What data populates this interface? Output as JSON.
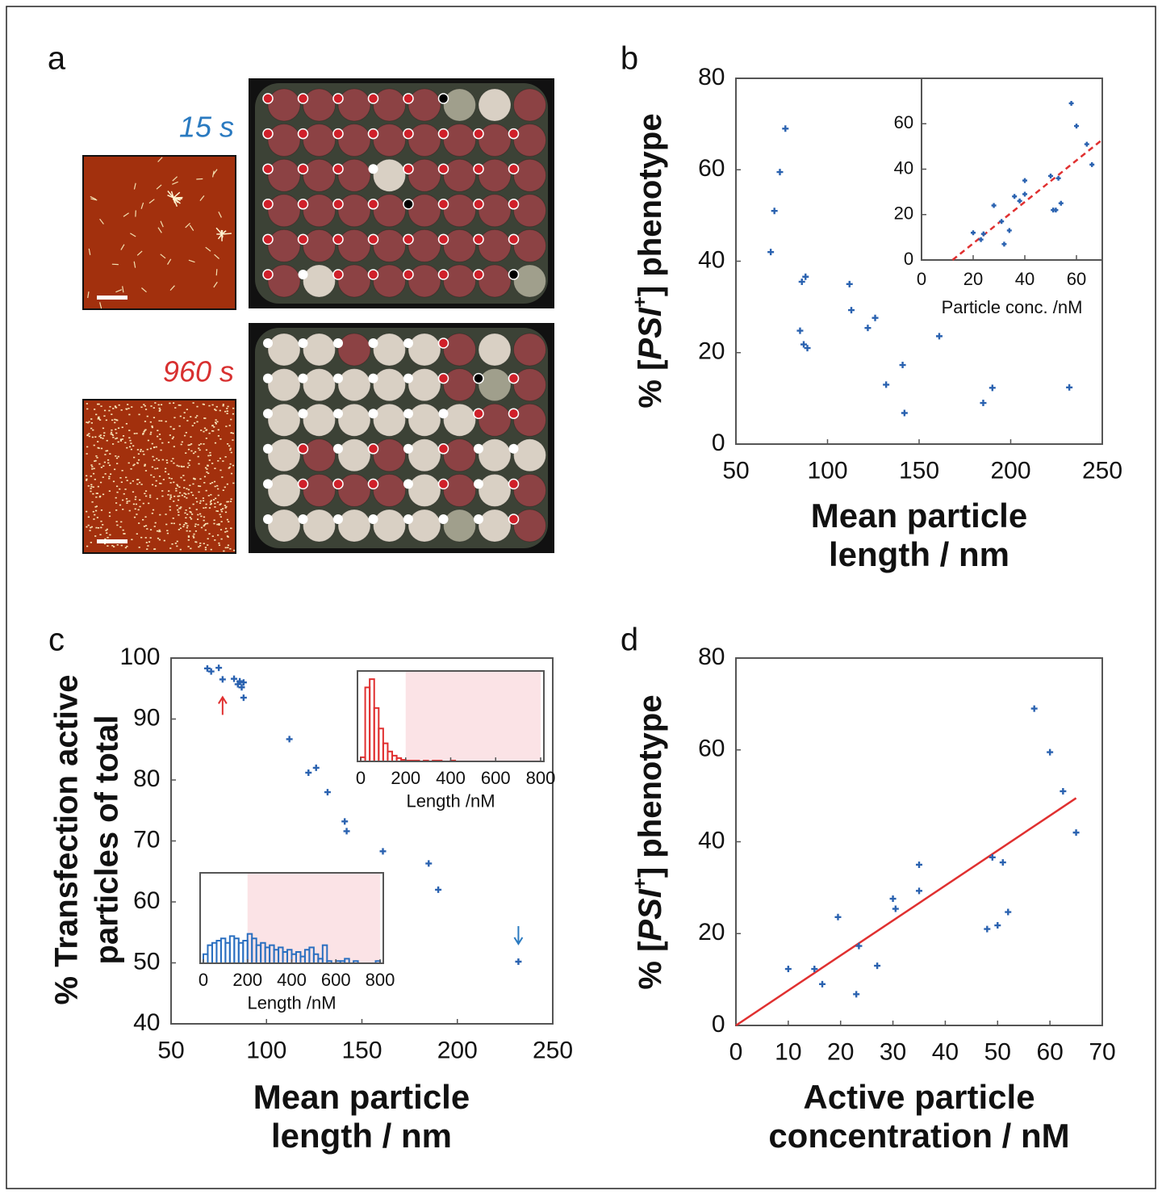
{
  "panel_a": {
    "label": "a",
    "images": [
      {
        "time": "15 s"
      },
      {
        "time": "960 s"
      }
    ]
  },
  "chart_data": [
    {
      "panel": "b",
      "type": "scatter",
      "color": "#2a62b0",
      "x": [
        69,
        71,
        74,
        77,
        85,
        86,
        88,
        87,
        89,
        112,
        113,
        122,
        126,
        132,
        141,
        142,
        161,
        185,
        190,
        232
      ],
      "values": [
        42,
        51,
        59.5,
        69,
        24.8,
        35.5,
        36.6,
        21.8,
        21,
        35,
        29.3,
        25.4,
        27.6,
        13,
        17.3,
        6.8,
        23.6,
        9,
        12.3,
        12.4
      ],
      "xlim": [
        50,
        250
      ],
      "xticks": [
        50,
        100,
        150,
        200,
        250
      ],
      "ylim": [
        0,
        80
      ],
      "yticks": [
        0,
        20,
        40,
        60,
        80
      ],
      "xlabel": [
        "Mean particle",
        "length / nm"
      ],
      "ylabel": {
        "prefix": "% [",
        "italic": "PSI",
        "sup": "+",
        "suffix": "] phenotype"
      },
      "inset": {
        "type": "scatter",
        "color": "#2a62b0",
        "x": [
          20,
          23,
          24,
          28,
          31,
          32,
          34,
          36,
          38,
          40,
          40,
          50,
          51,
          52,
          53,
          54,
          58,
          60,
          64,
          66
        ],
        "values": [
          12,
          9,
          11.5,
          24,
          17,
          7,
          13,
          28,
          26,
          35,
          29,
          37,
          22,
          22,
          36,
          25,
          69,
          59,
          51,
          42
        ],
        "fit": {
          "type": "line",
          "style": "dashed",
          "color": "#e03030",
          "x": [
            12,
            70
          ],
          "values": [
            0,
            53
          ]
        },
        "xlim": [
          0,
          70
        ],
        "xticks": [
          0,
          20,
          40,
          60
        ],
        "ylim": [
          0,
          80
        ],
        "yticks": [
          0,
          20,
          40,
          60
        ],
        "xlabel": "Particle conc. /nM"
      }
    },
    {
      "panel": "c",
      "type": "scatter",
      "color": "#2a62b0",
      "x": [
        69,
        71,
        75,
        77,
        83,
        85,
        86,
        87,
        88,
        88,
        112,
        122,
        126,
        132,
        141,
        142,
        161,
        185,
        190,
        232
      ],
      "values": [
        98.3,
        97.8,
        98.4,
        96.5,
        96.6,
        95.7,
        96.2,
        95.2,
        96,
        93.5,
        86.7,
        81.2,
        82,
        78,
        73.2,
        71.6,
        68.3,
        66.3,
        62,
        50.2
      ],
      "xlim": [
        50,
        250
      ],
      "xticks": [
        50,
        100,
        150,
        200,
        250
      ],
      "ylim": [
        40,
        100
      ],
      "yticks": [
        40,
        50,
        60,
        70,
        80,
        90,
        100
      ],
      "xlabel": [
        "Mean particle",
        "length / nm"
      ],
      "ylabel": [
        "% Transfection active",
        "particles of total"
      ],
      "insets": [
        {
          "type": "histogram",
          "color": "#e03030",
          "highlight": [
            200,
            800
          ],
          "bins": [
            0,
            20,
            40,
            60,
            80,
            100,
            120,
            140,
            160,
            180,
            200,
            220,
            240,
            260,
            280,
            300,
            320,
            340,
            360,
            380,
            400,
            420,
            440,
            460,
            480,
            500,
            520,
            540,
            560,
            580,
            600,
            620,
            640,
            660,
            680,
            700,
            720,
            740,
            760,
            780,
            800
          ],
          "counts": [
            5,
            90,
            100,
            65,
            40,
            22,
            12,
            7,
            4,
            2,
            1,
            1,
            1,
            0,
            1,
            0,
            1,
            1,
            0,
            0,
            1,
            0,
            0,
            0,
            0,
            0,
            0,
            0,
            0,
            0,
            0,
            0,
            0,
            0,
            0,
            0,
            0,
            0,
            0,
            0
          ],
          "xlim": [
            0,
            800
          ],
          "xticks": [
            0,
            200,
            400,
            600,
            800
          ],
          "ylim": [
            0,
            110
          ],
          "xlabel": "Length /nM"
        },
        {
          "type": "histogram",
          "color": "#2a6fc0",
          "highlight": [
            200,
            800
          ],
          "bins": [
            0,
            20,
            40,
            60,
            80,
            100,
            120,
            140,
            160,
            180,
            200,
            220,
            240,
            260,
            280,
            300,
            320,
            340,
            360,
            380,
            400,
            420,
            440,
            460,
            480,
            500,
            520,
            540,
            560,
            580,
            600,
            620,
            640,
            660,
            680,
            700,
            720,
            740,
            760,
            780,
            800
          ],
          "counts": [
            4,
            8,
            9,
            10,
            11,
            9,
            12,
            11,
            9,
            10,
            13,
            11,
            8,
            9,
            7,
            8,
            6,
            7,
            5,
            6,
            4,
            5,
            3,
            6,
            7,
            4,
            2,
            8,
            1,
            0,
            1,
            1,
            2,
            0,
            1,
            0,
            0,
            0,
            0,
            1
          ],
          "xlim": [
            0,
            800
          ],
          "xticks": [
            0,
            200,
            400,
            600,
            800
          ],
          "ylim": [
            0,
            40
          ],
          "xlabel": "Length /nM"
        }
      ]
    },
    {
      "panel": "d",
      "type": "scatter",
      "color": "#2a62b0",
      "x": [
        10,
        15,
        16.5,
        19.5,
        23,
        23.5,
        27,
        30,
        30.5,
        35,
        35,
        48,
        49,
        50,
        51,
        52,
        57,
        60,
        62.5,
        65
      ],
      "values": [
        12.3,
        12.3,
        9,
        23.6,
        6.8,
        17.3,
        13,
        27.6,
        25.4,
        35,
        29.3,
        21,
        36.6,
        21.8,
        35.5,
        24.7,
        69,
        59.5,
        51,
        42
      ],
      "fit": {
        "type": "line",
        "style": "solid",
        "color": "#e03030",
        "x": [
          0,
          65
        ],
        "values": [
          0,
          49.5
        ]
      },
      "xlim": [
        0,
        70
      ],
      "xticks": [
        0,
        10,
        20,
        30,
        40,
        50,
        60,
        70
      ],
      "ylim": [
        0,
        80
      ],
      "yticks": [
        0,
        20,
        40,
        60,
        80
      ],
      "xlabel": [
        "Active particle",
        "concentration / nM"
      ],
      "ylabel": {
        "prefix": "% [",
        "italic": "PSI",
        "sup": "+",
        "suffix": "] phenotype"
      }
    }
  ]
}
